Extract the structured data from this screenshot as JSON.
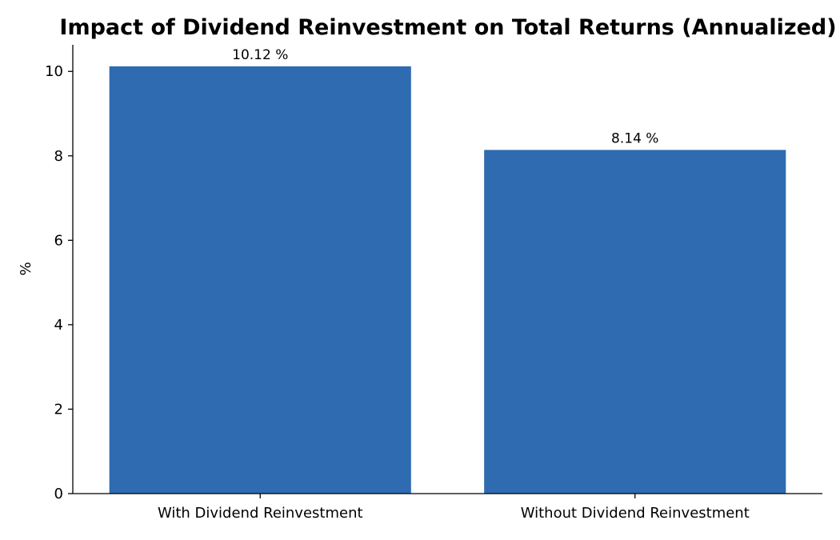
{
  "chart_data": {
    "type": "bar",
    "title": "Impact of Dividend Reinvestment on Total Returns (Annualized)",
    "xlabel": "",
    "ylabel": "%",
    "categories": [
      "With Dividend Reinvestment",
      "Without Dividend Reinvestment"
    ],
    "values": [
      10.12,
      8.14
    ],
    "value_labels": [
      "10.12 %",
      "8.14 %"
    ],
    "ylim": [
      0,
      10.63
    ],
    "yticks": [
      0,
      2,
      4,
      6,
      8,
      10
    ],
    "ytick_labels": [
      "0",
      "2",
      "4",
      "6",
      "8",
      "10"
    ],
    "bar_color": "#2e6bb0",
    "grid": false,
    "legend": "none"
  }
}
